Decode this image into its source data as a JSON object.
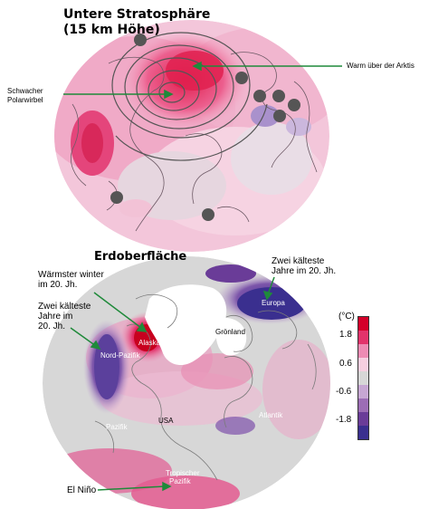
{
  "top_panel": {
    "title_line1": "Untere Stratosphäre",
    "title_line2": "(15 km Höhe)",
    "label_polar_vortex_line1": "Schwacher",
    "label_polar_vortex_line2": "Polarwirbel",
    "label_arctic_warm": "Warm über der Arktis"
  },
  "bottom_panel": {
    "title": "Erdoberfläche",
    "label_warmest_line1": "Wärmster winter",
    "label_warmest_line2": "im 20. Jh.",
    "label_coldest_left_line1": "Zwei kälteste",
    "label_coldest_left_line2": "Jahre im",
    "label_coldest_left_line3": "20. Jh.",
    "label_coldest_right_line1": "Zwei kälteste",
    "label_coldest_right_line2": "Jahre im 20. Jh.",
    "region_europa": "Europa",
    "region_alaska": "Alaska",
    "region_groenland": "Grönland",
    "region_nord_pazifik": "Nord-Pazifik",
    "region_pazifik": "Pazifik",
    "region_usa": "USA",
    "region_atlantik": "Atlantik",
    "region_tropischer_line1": "Tropischer",
    "region_tropischer_line2": "Pazifik",
    "label_el_nino": "El Niño"
  },
  "legend": {
    "unit": "(°C)",
    "ticks": [
      "1.8",
      "0.6",
      "-0.6",
      "-1.8"
    ],
    "colors": [
      "#d4002a",
      "#e2336b",
      "#ee8bb4",
      "#f6cfe0",
      "#d7d7d7",
      "#c7a7d3",
      "#9c6db5",
      "#6a3c98",
      "#3a2f8f"
    ]
  }
}
